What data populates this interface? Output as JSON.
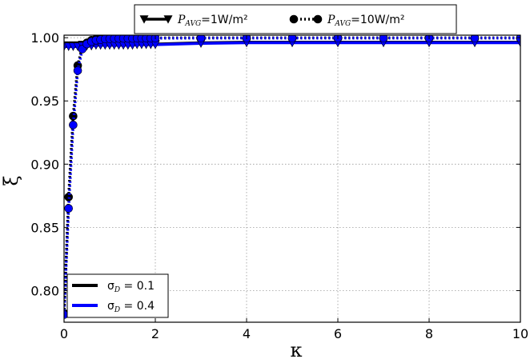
{
  "chart_data": {
    "type": "line",
    "title": "",
    "xlabel": "κ",
    "ylabel": "ξ",
    "xlim": [
      0,
      10
    ],
    "ylim": [
      0.775,
      1.002
    ],
    "x_ticks": [
      "0",
      "2",
      "4",
      "6",
      "8",
      "10"
    ],
    "y_ticks": [
      "0.80",
      "0.85",
      "0.90",
      "0.95",
      "1.00"
    ],
    "grid": true,
    "legend_top": [
      {
        "marker": "triangle-down",
        "line": "solid",
        "label_prefix": "P",
        "label_sub": "AVG",
        "label_suffix": "=1W/m²"
      },
      {
        "marker": "circle",
        "line": "dotted",
        "label_prefix": "P",
        "label_sub": "AVG",
        "label_suffix": "=10W/m²"
      }
    ],
    "legend_bottom": [
      {
        "color": "#000000",
        "label_prefix": "σ",
        "label_sub": "D",
        "label_suffix": " = 0.1"
      },
      {
        "color": "#0000ff",
        "label_prefix": "σ",
        "label_sub": "D",
        "label_suffix": " = 0.4"
      }
    ],
    "series": [
      {
        "sigma": 0.1,
        "power": 1,
        "color": "#000000",
        "line": "solid",
        "marker": "triangle-down",
        "x": [
          0,
          0.1,
          0.2,
          0.3,
          0.4,
          0.5,
          0.6,
          0.7,
          0.8,
          0.9,
          1.0,
          1.1,
          1.2,
          1.3,
          1.4,
          1.5,
          1.6,
          1.7,
          1.8,
          1.9,
          2,
          3,
          4,
          5,
          6,
          7,
          8,
          9,
          10
        ],
        "y": [
          0.994,
          0.994,
          0.994,
          0.994,
          0.9945,
          0.9945,
          0.9945,
          0.9945,
          0.9945,
          0.995,
          0.995,
          0.995,
          0.995,
          0.995,
          0.995,
          0.995,
          0.995,
          0.995,
          0.995,
          0.995,
          0.995,
          0.996,
          0.9965,
          0.9965,
          0.9965,
          0.9965,
          0.9965,
          0.9965,
          0.9965
        ]
      },
      {
        "sigma": 0.1,
        "power": 10,
        "color": "#000000",
        "line": "dotted",
        "marker": "circle",
        "x": [
          0,
          0.1,
          0.2,
          0.3,
          0.4,
          0.5,
          0.6,
          0.7,
          0.8,
          0.9,
          1.0,
          1.1,
          1.2,
          1.3,
          1.4,
          1.5,
          1.6,
          1.7,
          1.8,
          1.9,
          2,
          3,
          4,
          5,
          6,
          7,
          8,
          9,
          10
        ],
        "y": [
          0.782,
          0.874,
          0.938,
          0.978,
          0.993,
          0.996,
          0.998,
          0.999,
          0.9993,
          0.9995,
          0.9996,
          0.9997,
          0.9997,
          0.9998,
          0.9998,
          0.9998,
          0.9998,
          0.9998,
          0.9998,
          0.9998,
          0.9998,
          0.9999,
          0.9999,
          0.9999,
          0.9999,
          0.9999,
          0.9999,
          0.9999,
          0.9999
        ]
      },
      {
        "sigma": 0.4,
        "power": 1,
        "color": "#0000ff",
        "line": "solid",
        "marker": "triangle-down",
        "x": [
          0,
          0.1,
          0.2,
          0.3,
          0.4,
          0.5,
          0.6,
          0.7,
          0.8,
          0.9,
          1.0,
          1.1,
          1.2,
          1.3,
          1.4,
          1.5,
          1.6,
          1.7,
          1.8,
          1.9,
          2,
          3,
          4,
          5,
          6,
          7,
          8,
          9,
          10
        ],
        "y": [
          0.993,
          0.993,
          0.993,
          0.993,
          0.9935,
          0.9935,
          0.9935,
          0.994,
          0.994,
          0.994,
          0.994,
          0.994,
          0.994,
          0.994,
          0.994,
          0.994,
          0.9945,
          0.9945,
          0.9945,
          0.9945,
          0.9945,
          0.9955,
          0.996,
          0.996,
          0.996,
          0.996,
          0.996,
          0.996,
          0.996
        ]
      },
      {
        "sigma": 0.4,
        "power": 10,
        "color": "#0000ff",
        "line": "dotted",
        "marker": "circle",
        "x": [
          0,
          0.1,
          0.2,
          0.3,
          0.4,
          0.5,
          0.6,
          0.7,
          0.8,
          0.9,
          1.0,
          1.1,
          1.2,
          1.3,
          1.4,
          1.5,
          1.6,
          1.7,
          1.8,
          1.9,
          2,
          3,
          4,
          5,
          6,
          7,
          8,
          9,
          10
        ],
        "y": [
          0.781,
          0.865,
          0.931,
          0.974,
          0.991,
          0.995,
          0.997,
          0.998,
          0.9985,
          0.999,
          0.9992,
          0.9993,
          0.9994,
          0.9995,
          0.9995,
          0.9995,
          0.9996,
          0.9996,
          0.9996,
          0.9996,
          0.9996,
          0.9997,
          0.9997,
          0.9997,
          0.9997,
          0.9997,
          0.9997,
          0.9997,
          0.9997
        ]
      }
    ]
  }
}
